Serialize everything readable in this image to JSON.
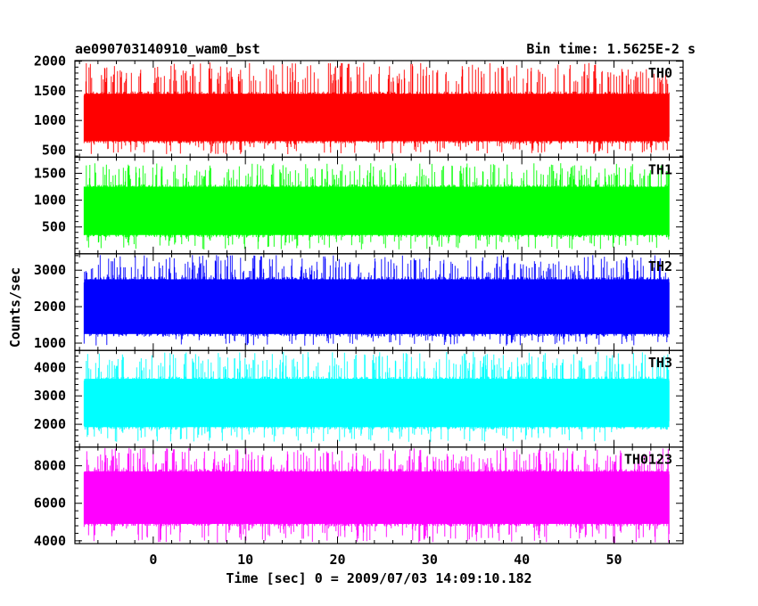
{
  "header": {
    "title": "ae090703140910_wam0_bst",
    "bin_time": "Bin time: 1.5625E-2 s"
  },
  "chart_data": {
    "type": "line",
    "xlabel": "Time [sec] 0 = 2009/07/03 14:09:10.182",
    "ylabel": "Counts/sec",
    "xlim": [
      -8.5,
      57.5
    ],
    "data_x_range": [
      -7.5,
      56
    ],
    "bin_time_s": 0.015625,
    "xticks": [
      0,
      10,
      20,
      30,
      40,
      50
    ],
    "xtick_labels": [
      "0",
      "10",
      "20",
      "30",
      "40",
      "50"
    ],
    "series": [
      {
        "name": "TH0",
        "color": "#ff0000",
        "ylim": [
          380,
          2010
        ],
        "yticks": [
          500,
          1000,
          1500,
          2000
        ],
        "ytick_labels": [
          "500",
          "1000",
          "1500",
          "2000"
        ],
        "typical_band": [
          650,
          1450
        ],
        "extreme_range": [
          430,
          1980
        ]
      },
      {
        "name": "TH1",
        "color": "#00ff00",
        "ylim": [
          0,
          1800
        ],
        "yticks": [
          500,
          1000,
          1500
        ],
        "ytick_labels": [
          "500",
          "1000",
          "1500"
        ],
        "typical_band": [
          350,
          1250
        ],
        "extreme_range": [
          80,
          1690
        ]
      },
      {
        "name": "TH2",
        "color": "#0000ff",
        "ylim": [
          800,
          3450
        ],
        "yticks": [
          1000,
          2000,
          3000
        ],
        "ytick_labels": [
          "1000",
          "2000",
          "3000"
        ],
        "typical_band": [
          1250,
          2750
        ],
        "extreme_range": [
          920,
          3420
        ]
      },
      {
        "name": "TH3",
        "color": "#00ffff",
        "ylim": [
          1200,
          4600
        ],
        "yticks": [
          2000,
          3000,
          4000
        ],
        "ytick_labels": [
          "2000",
          "3000",
          "4000"
        ],
        "typical_band": [
          1900,
          3600
        ],
        "extreme_range": [
          1380,
          4550
        ]
      },
      {
        "name": "TH0123",
        "color": "#ff00ff",
        "ylim": [
          3850,
          9000
        ],
        "yticks": [
          4000,
          6000,
          8000
        ],
        "ytick_labels": [
          "4000",
          "6000",
          "8000"
        ],
        "typical_band": [
          4900,
          7700
        ],
        "extreme_range": [
          3880,
          8950
        ]
      }
    ]
  }
}
